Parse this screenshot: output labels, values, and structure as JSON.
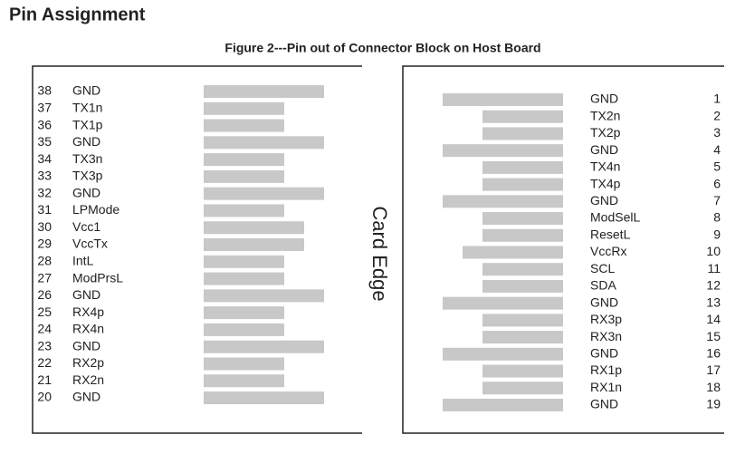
{
  "header": {
    "title": "Pin Assignment"
  },
  "figure": {
    "caption": "Figure 2---Pin out of Connector Block on Host Board",
    "center_label": "Card Edge",
    "left_pins": [
      [
        "38",
        "GND"
      ],
      [
        "37",
        "TX1n"
      ],
      [
        "36",
        "TX1p"
      ],
      [
        "35",
        "GND"
      ],
      [
        "34",
        "TX3n"
      ],
      [
        "33",
        "TX3p"
      ],
      [
        "32",
        "GND"
      ],
      [
        "31",
        "LPMode"
      ],
      [
        "30",
        "Vcc1"
      ],
      [
        "29",
        "VccTx"
      ],
      [
        "28",
        "IntL"
      ],
      [
        "27",
        "ModPrsL"
      ],
      [
        "26",
        "GND"
      ],
      [
        "25",
        "RX4p"
      ],
      [
        "24",
        "RX4n"
      ],
      [
        "23",
        "GND"
      ],
      [
        "22",
        "RX2p"
      ],
      [
        "21",
        "RX2n"
      ],
      [
        "20",
        "GND"
      ]
    ],
    "right_pins": [
      [
        "1",
        "GND"
      ],
      [
        "2",
        "TX2n"
      ],
      [
        "3",
        "TX2p"
      ],
      [
        "4",
        "GND"
      ],
      [
        "5",
        "TX4n"
      ],
      [
        "6",
        "TX4p"
      ],
      [
        "7",
        "GND"
      ],
      [
        "8",
        "ModSelL"
      ],
      [
        "9",
        "ResetL"
      ],
      [
        "10",
        "VccRx"
      ],
      [
        "11",
        "SCL"
      ],
      [
        "12",
        "SDA"
      ],
      [
        "13",
        "GND"
      ],
      [
        "14",
        "RX3p"
      ],
      [
        "15",
        "RX3n"
      ],
      [
        "16",
        "GND"
      ],
      [
        "17",
        "RX1p"
      ],
      [
        "18",
        "RX1n"
      ],
      [
        "19",
        "GND"
      ]
    ]
  }
}
